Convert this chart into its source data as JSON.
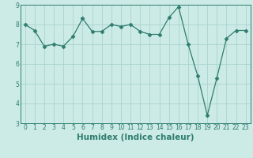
{
  "x": [
    0,
    1,
    2,
    3,
    4,
    5,
    6,
    7,
    8,
    9,
    10,
    11,
    12,
    13,
    14,
    15,
    16,
    17,
    18,
    19,
    20,
    21,
    22,
    23
  ],
  "y": [
    8.0,
    7.7,
    6.9,
    7.0,
    6.9,
    7.4,
    8.3,
    7.65,
    7.65,
    8.0,
    7.9,
    8.0,
    7.65,
    7.5,
    7.5,
    8.35,
    8.9,
    7.0,
    5.4,
    3.4,
    5.3,
    7.3,
    7.7,
    7.7
  ],
  "xlabel": "Humidex (Indice chaleur)",
  "ylim": [
    3,
    9
  ],
  "xlim_min": -0.5,
  "xlim_max": 23.5,
  "yticks": [
    3,
    4,
    5,
    6,
    7,
    8,
    9
  ],
  "xticks": [
    0,
    1,
    2,
    3,
    4,
    5,
    6,
    7,
    8,
    9,
    10,
    11,
    12,
    13,
    14,
    15,
    16,
    17,
    18,
    19,
    20,
    21,
    22,
    23
  ],
  "line_color": "#2e7d6e",
  "marker": "D",
  "marker_size": 2.5,
  "bg_color": "#cceae6",
  "grid_color": "#aad4ce",
  "tick_label_fontsize": 5.5,
  "xlabel_fontsize": 7.5,
  "xlabel_fontweight": "bold"
}
